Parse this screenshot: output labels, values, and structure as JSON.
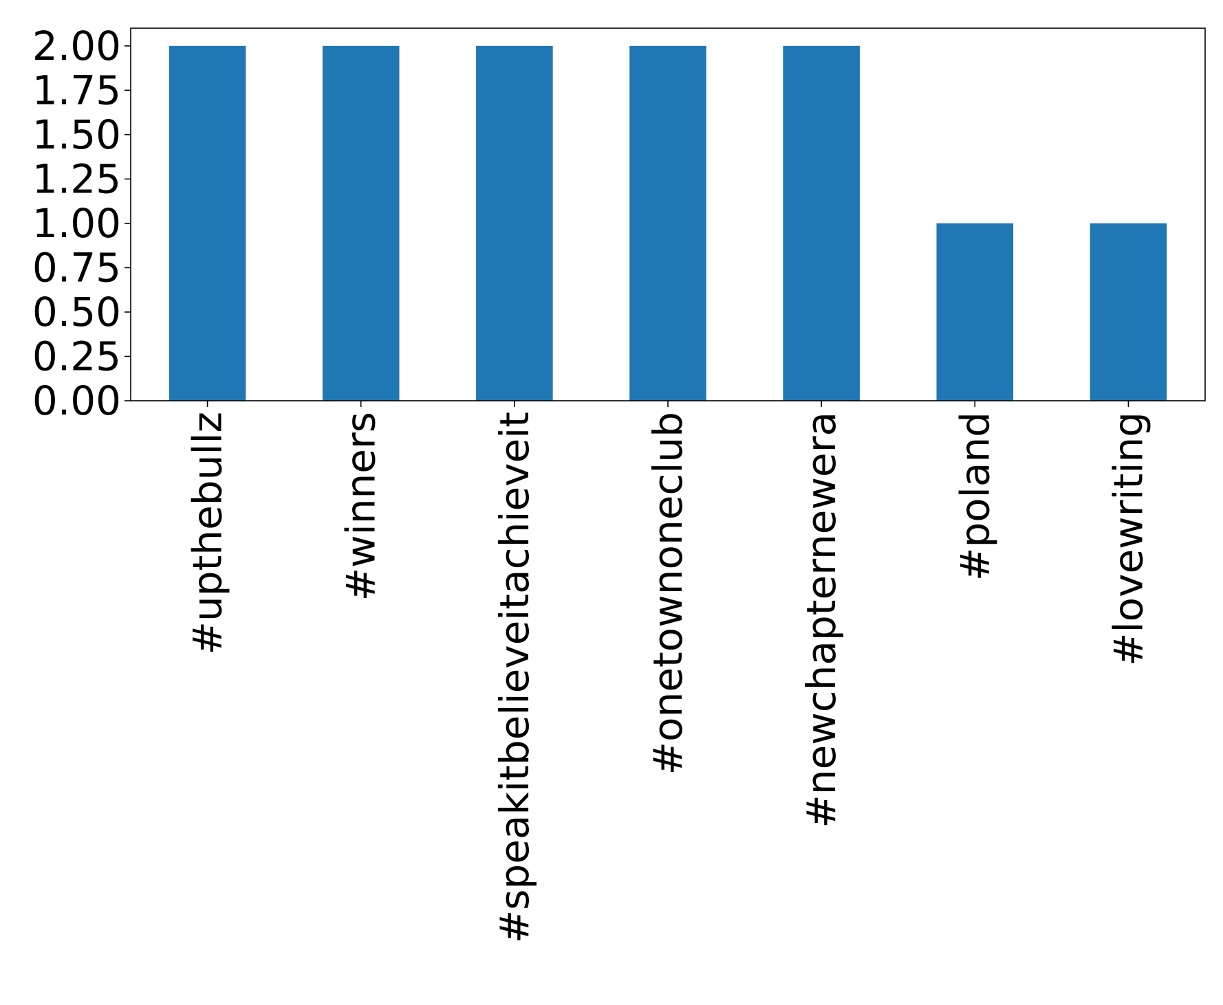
{
  "chart_data": {
    "type": "bar",
    "categories": [
      "#upthebullz",
      "#winners",
      "#speakitbelieveitachieveit",
      "#onetownoneclub",
      "#newchapternewera",
      "#poland",
      "#lovewriting"
    ],
    "values": [
      2,
      2,
      2,
      2,
      2,
      1,
      1
    ],
    "ylim": [
      0,
      2.1
    ],
    "yticks": [
      "0.00",
      "0.25",
      "0.50",
      "0.75",
      "1.00",
      "1.25",
      "1.50",
      "1.75",
      "2.00"
    ],
    "ytick_values": [
      0,
      0.25,
      0.5,
      0.75,
      1.0,
      1.25,
      1.5,
      1.75,
      2.0
    ],
    "title": "",
    "xlabel": "",
    "ylabel": "",
    "grid": false,
    "bar_color": "#1f77b4",
    "axis_color": "#000000"
  }
}
